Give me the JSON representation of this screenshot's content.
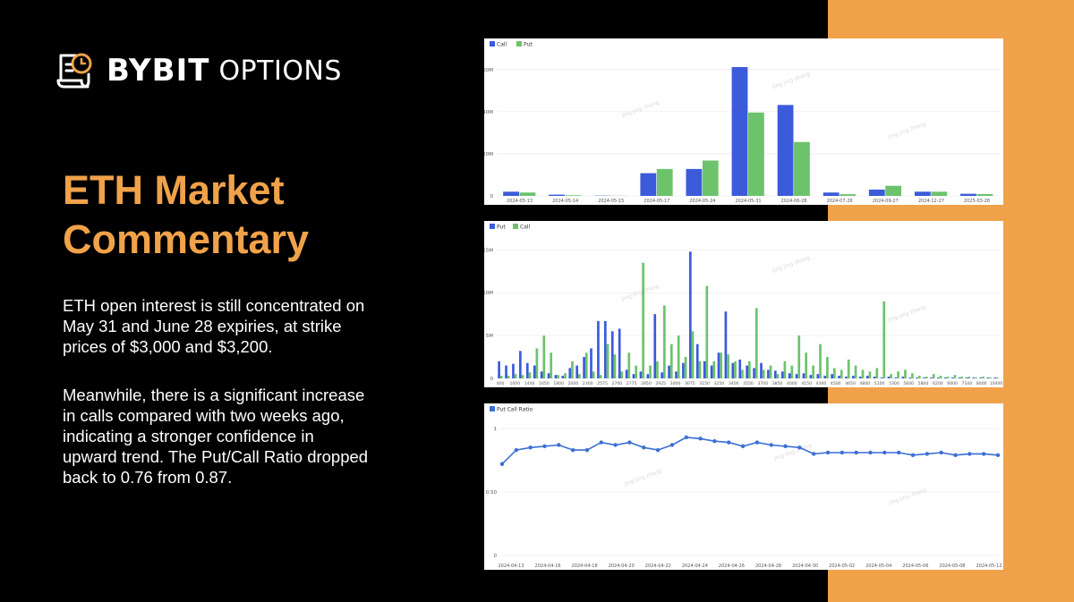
{
  "brand": {
    "name": "BYBIT",
    "suffix": "OPTIONS"
  },
  "title": "ETH Market Commentary",
  "paragraphs": [
    "ETH open interest is still concentrated on May 31 and June 28 expiries, at strike prices of $3,000 and $3,200.",
    "Meanwhile, there is a significant increase in calls compared with two weeks ago, indicating a stronger confidence in upward trend. The Put/Call Ratio dropped back to 0.76 from 0.87."
  ],
  "colors": {
    "background": "#000000",
    "accent": "#F0A24A",
    "blue": "#3B5BDB",
    "green": "#6CC36C",
    "line": "#3B6FD4"
  },
  "chart_data": [
    {
      "type": "bar",
      "legend": [
        "Call",
        "Put"
      ],
      "categories": [
        "2024-05-13",
        "2024-05-14",
        "2024-05-15",
        "2024-05-17",
        "2024-05-24",
        "2024-05-31",
        "2024-06-28",
        "2024-07-26",
        "2024-09-27",
        "2024-12-27",
        "2025-03-28"
      ],
      "series": [
        {
          "name": "Call",
          "values": [
            5,
            1.5,
            0.3,
            27,
            32,
            153,
            108,
            4,
            7.5,
            5,
            2.5
          ]
        },
        {
          "name": "Put",
          "values": [
            4,
            0.8,
            0.2,
            32,
            42,
            99,
            64,
            2,
            12,
            5,
            2.2
          ]
        }
      ],
      "yticks": [
        "0",
        "20M",
        "40M",
        "60M"
      ],
      "ytick_values": [
        0,
        50,
        100,
        150
      ],
      "ylim": [
        0,
        170
      ],
      "watermark": "Jing jing zhang"
    },
    {
      "type": "bar",
      "legend": [
        "Put",
        "Call"
      ],
      "xticks": [
        "400",
        "1000",
        "1400",
        "1650",
        "1800",
        "2000",
        "2300",
        "2575",
        "2700",
        "2775",
        "2850",
        "2925",
        "3000",
        "3075",
        "3150",
        "3250",
        "3400",
        "3550",
        "3700",
        "3850",
        "4000",
        "4150",
        "4300",
        "4500",
        "4650",
        "4800",
        "5100",
        "5300",
        "5600",
        "5800",
        "6200",
        "6600",
        "7100",
        "8000",
        "10400"
      ],
      "series": [
        {
          "name": "Put",
          "values": [
            2.0,
            1.5,
            1.7,
            3.2,
            1.8,
            1.5,
            0.8,
            0.6,
            0.4,
            0.3,
            1.2,
            1.5,
            2.5,
            3.5,
            6.7,
            6.7,
            5.5,
            5.8,
            1.0,
            0.5,
            0.8,
            0.5,
            7.5,
            0.7,
            1.5,
            0.8,
            1.8,
            14.8,
            4.0,
            2.0,
            1.5,
            3.0,
            7.8,
            1.8,
            2.2,
            1.5,
            1.2,
            1.8,
            1.0,
            0.9,
            0.8,
            0.6,
            0.5,
            0.6,
            0.4,
            0.5,
            0.3,
            0.5,
            0.3,
            0.2,
            0.3,
            0.2,
            0.3,
            0.2,
            0.1,
            0.2,
            0.1,
            0.2,
            0.1,
            0.1,
            0.1,
            0.1,
            0.1,
            0.1,
            0.1,
            0.1,
            0.1,
            0.1,
            0.1,
            0.1,
            0.1
          ]
        },
        {
          "name": "Call",
          "values": [
            0.3,
            0.3,
            0.5,
            0.4,
            0.7,
            3.5,
            5.0,
            3.0,
            0.4,
            0.6,
            2.0,
            0.5,
            3.0,
            0.8,
            0.4,
            4.0,
            2.8,
            0.8,
            3.0,
            1.5,
            13.5,
            1.5,
            2.0,
            8.5,
            4.0,
            5.0,
            2.5,
            5.5,
            2.0,
            10.8,
            2.0,
            3.0,
            2.8,
            2.0,
            1.0,
            2.0,
            8.2,
            1.0,
            1.5,
            0.5,
            2.0,
            1.5,
            5.0,
            3.0,
            1.5,
            4.0,
            2.5,
            1.2,
            1.0,
            2.2,
            1.5,
            1.0,
            0.8,
            1.2,
            9.0,
            0.5,
            0.8,
            1.0,
            0.6,
            0.3,
            0.2,
            0.5,
            0.3,
            0.2,
            0.4,
            0.2,
            0.2,
            0.1,
            0.2,
            0.1,
            0.1
          ]
        }
      ],
      "yticks": [
        "0",
        "5M",
        "10M",
        "15M"
      ],
      "ytick_values": [
        0,
        5,
        10,
        15
      ],
      "ylim": [
        0,
        16.5
      ],
      "watermark": "Jing jing zhang"
    },
    {
      "type": "line",
      "legend": [
        "Put Call Ratio"
      ],
      "xticks": [
        "2024-04-13",
        "2024-04-16",
        "2024-04-18",
        "2024-04-20",
        "2024-04-22",
        "2024-04-24",
        "2024-04-26",
        "2024-04-28",
        "2024-04-30",
        "2024-05-02",
        "2024-05-04",
        "2024-05-06",
        "2024-05-08",
        "2024-05-12"
      ],
      "series": [
        {
          "name": "Put Call Ratio",
          "values": [
            0.72,
            0.83,
            0.85,
            0.86,
            0.87,
            0.83,
            0.83,
            0.89,
            0.87,
            0.89,
            0.85,
            0.83,
            0.87,
            0.93,
            0.92,
            0.9,
            0.89,
            0.86,
            0.89,
            0.87,
            0.86,
            0.85,
            0.8,
            0.81,
            0.81,
            0.81,
            0.81,
            0.81,
            0.81,
            0.79,
            0.8,
            0.81,
            0.79,
            0.8,
            0.8,
            0.79
          ]
        }
      ],
      "yticks": [
        "0",
        "0.50",
        "1"
      ],
      "ytick_values": [
        0,
        0.5,
        1
      ],
      "ylim": [
        0,
        1
      ],
      "watermark": "Jing jing zhang"
    }
  ]
}
